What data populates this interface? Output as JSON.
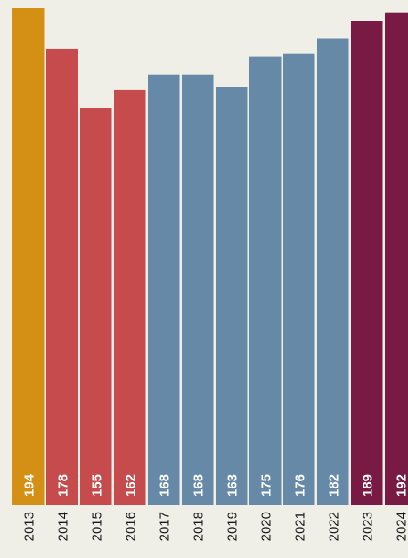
{
  "chart_data": {
    "type": "bar",
    "title": "",
    "xlabel": "",
    "ylabel": "",
    "categories": [
      "2013",
      "2014",
      "2015",
      "2016",
      "2017",
      "2018",
      "2019",
      "2020",
      "2021",
      "2022",
      "2023",
      "2024"
    ],
    "values": [
      194,
      178,
      155,
      162,
      168,
      168,
      163,
      175,
      176,
      182,
      189,
      192
    ],
    "value_labels": [
      "194",
      "178",
      "155",
      "162",
      "168",
      "168",
      "163",
      "175",
      "176",
      "182",
      "189",
      "192"
    ],
    "colors": [
      "#d39014",
      "#c64b4c",
      "#c64b4c",
      "#c64b4c",
      "#6689a7",
      "#6689a7",
      "#6689a7",
      "#6689a7",
      "#6689a7",
      "#6689a7",
      "#791a45",
      "#791a45"
    ],
    "ylim": [
      0,
      200
    ],
    "grid": false,
    "legend": "none",
    "data_labels": true,
    "tick_label_rotation": -90
  }
}
